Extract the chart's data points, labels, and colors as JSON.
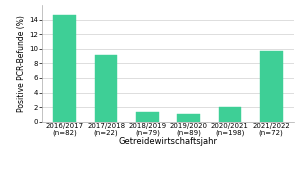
{
  "categories": [
    "2016/2017\n(n=82)",
    "2017/2018\n(n=22)",
    "2018/2019\n(n=79)",
    "2019/2020\n(n=89)",
    "2020/2021\n(n=198)",
    "2021/2022\n(n=72)"
  ],
  "values": [
    14.6,
    9.1,
    1.3,
    1.1,
    2.0,
    9.7
  ],
  "bar_color": "#3ecf96",
  "ylabel": "Positive PCR-Befunde (%)",
  "xlabel": "Getreidewirtschaftsjahr",
  "ylim": [
    0,
    16
  ],
  "yticks": [
    0,
    2,
    4,
    6,
    8,
    10,
    12,
    14
  ],
  "background_color": "#ffffff",
  "grid_color": "#d0d0d0",
  "ylabel_fontsize": 5.5,
  "xlabel_fontsize": 6.0,
  "tick_fontsize": 5.0,
  "bar_width": 0.55
}
